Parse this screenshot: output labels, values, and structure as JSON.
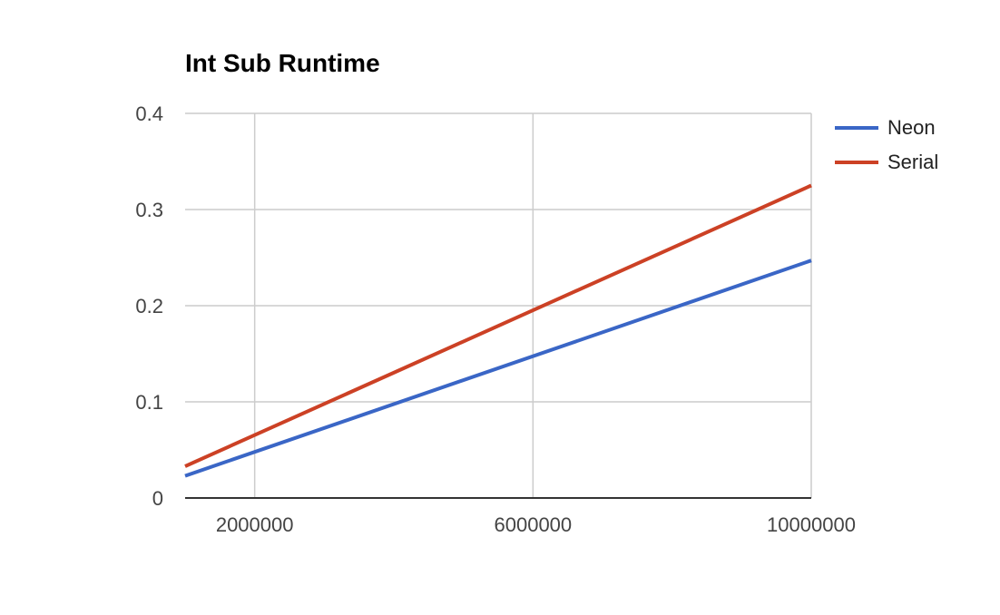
{
  "chart_data": {
    "type": "line",
    "title": "Int Sub Runtime",
    "xlabel": "",
    "ylabel": "",
    "xlim": [
      1000000,
      10000000
    ],
    "ylim": [
      0,
      0.4
    ],
    "x_ticks": [
      2000000,
      6000000,
      10000000
    ],
    "x_tick_labels": [
      "2000000",
      "6000000",
      "10000000"
    ],
    "y_ticks": [
      0,
      0.1,
      0.2,
      0.3,
      0.4
    ],
    "y_tick_labels": [
      "0",
      "0.1",
      "0.2",
      "0.3",
      "0.4"
    ],
    "grid": true,
    "legend_position": "right",
    "series": [
      {
        "name": "Neon",
        "color": "#3a66c6",
        "x": [
          1000000,
          10000000
        ],
        "y": [
          0.023,
          0.247
        ]
      },
      {
        "name": "Serial",
        "color": "#cc4125",
        "x": [
          1000000,
          10000000
        ],
        "y": [
          0.033,
          0.325
        ]
      }
    ]
  }
}
